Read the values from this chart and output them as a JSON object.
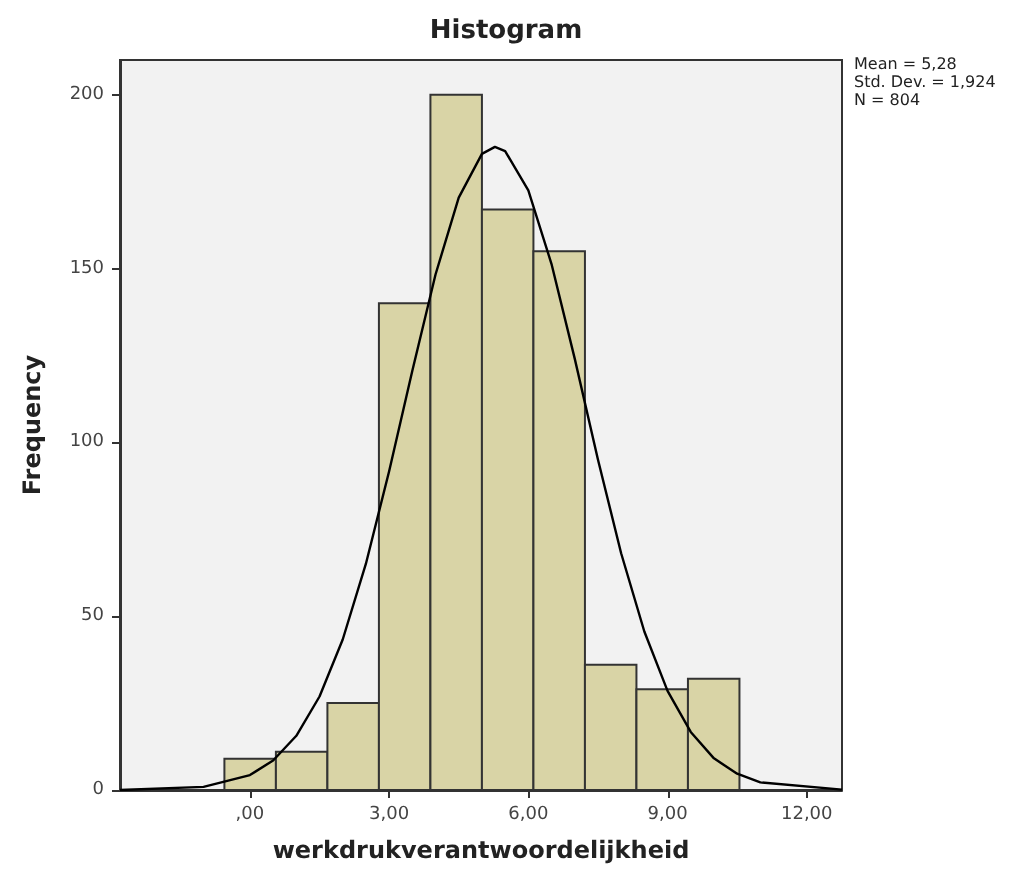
{
  "chart_data": {
    "type": "histogram",
    "title": "Histogram",
    "xlabel": "werkdrukverantwoordelijkheid",
    "ylabel": "Frequency",
    "bins": [
      -0.55,
      0.56,
      1.67,
      2.78,
      3.89,
      5.0,
      6.11,
      7.22,
      8.33,
      9.44,
      10.55
    ],
    "series": [
      {
        "color": "#d9d4a6",
        "values": [
          9,
          11,
          25,
          140,
          200,
          167,
          155,
          36,
          29,
          32
        ]
      },
      {
        "type": "line",
        "color": "#000000",
        "x": [
          -2.8,
          -1,
          0,
          0.5,
          1,
          1.5,
          2,
          2.5,
          3,
          3.5,
          4,
          4.5,
          5,
          5.28,
          5.5,
          6,
          6.5,
          7,
          7.5,
          8,
          8.5,
          9,
          9.5,
          10,
          10.5,
          11,
          12.76
        ],
        "values": [
          0,
          0.9,
          4.3,
          8.5,
          15.6,
          26.9,
          43.3,
          65.1,
          91.7,
          120.6,
          148.3,
          170.4,
          183.0,
          185.0,
          183.8,
          172.5,
          151.3,
          124.1,
          95.1,
          68.1,
          45.6,
          28.5,
          16.7,
          9.1,
          4.7,
          2.2,
          0.1
        ]
      }
    ],
    "xlim": [
      -2.8,
      12.76
    ],
    "xticks": [
      {
        "value": 0,
        "label": ",00"
      },
      {
        "value": 3,
        "label": "3,00"
      },
      {
        "value": 6,
        "label": "6,00"
      },
      {
        "value": 9,
        "label": "9,00"
      },
      {
        "value": 12,
        "label": "12,00"
      }
    ],
    "ylim": [
      0,
      210
    ],
    "yticks": [
      0,
      50,
      100,
      150,
      200
    ],
    "annotations": [
      "Mean = 5,28",
      "Std. Dev. = 1,924",
      "N = 804"
    ],
    "grid": false,
    "marker": "none"
  }
}
